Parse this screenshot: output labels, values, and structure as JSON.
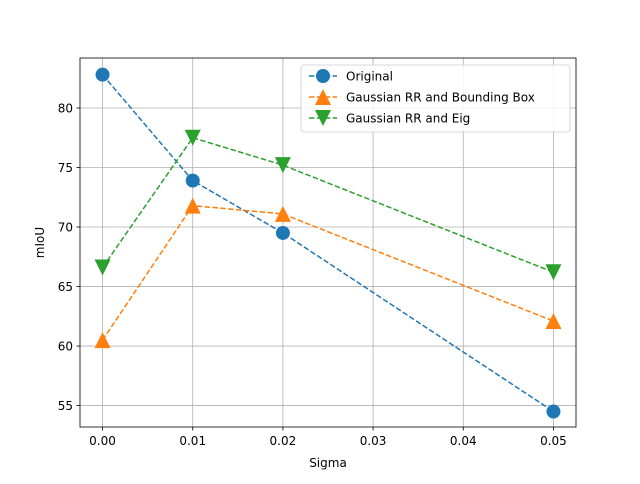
{
  "chart_data": {
    "type": "line",
    "title": "",
    "xlabel": "Sigma",
    "ylabel": "mIoU",
    "xlim": [
      -0.0025,
      0.0525
    ],
    "ylim": [
      53.2,
      84.2
    ],
    "xticks": [
      0.0,
      0.01,
      0.02,
      0.03,
      0.04,
      0.05
    ],
    "xtick_labels": [
      "0.00",
      "0.01",
      "0.02",
      "0.03",
      "0.04",
      "0.05"
    ],
    "yticks": [
      55,
      60,
      65,
      70,
      75,
      80
    ],
    "ytick_labels": [
      "55",
      "60",
      "65",
      "70",
      "75",
      "80"
    ],
    "grid": true,
    "legend_position": "top-right",
    "x": [
      0.0,
      0.01,
      0.02,
      0.05
    ],
    "series": [
      {
        "name": "Original",
        "values": [
          82.8,
          73.9,
          69.5,
          54.5
        ],
        "color": "#1f77b4",
        "marker": "circle",
        "linestyle": "dashed"
      },
      {
        "name": "Gaussian RR and Bounding Box",
        "values": [
          60.5,
          71.8,
          71.1,
          62.1
        ],
        "color": "#ff7f0e",
        "marker": "triangle-up",
        "linestyle": "dashed"
      },
      {
        "name": "Gaussian RR and Eig",
        "values": [
          66.6,
          77.5,
          75.2,
          66.2
        ],
        "color": "#2ca02c",
        "marker": "triangle-down",
        "linestyle": "dashed"
      }
    ]
  }
}
